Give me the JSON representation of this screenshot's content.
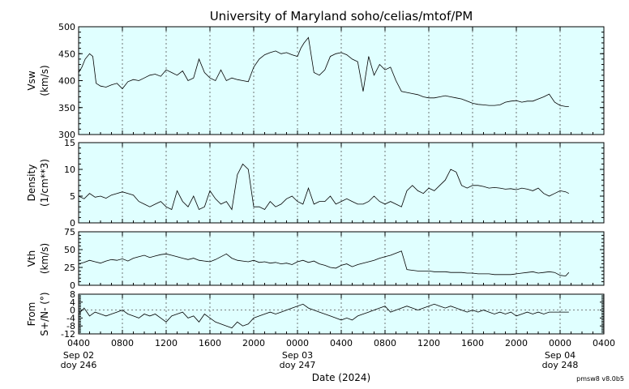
{
  "title": "University of Maryland  soho/celias/mtof/PM",
  "xlabel": "Date (2024)",
  "footer": "pmsw8 v8.0b5",
  "x_tick_labels": [
    "0400",
    "0800",
    "1200",
    "1600",
    "2000",
    "0000",
    "0400",
    "0800",
    "1200",
    "1600",
    "2000",
    "0000",
    "0400"
  ],
  "date_labels": [
    {
      "date": "Sep 02",
      "doy": "doy 246"
    },
    {
      "date": "Sep 03",
      "doy": "doy 247"
    },
    {
      "date": "Sep 04",
      "doy": "doy 248"
    }
  ],
  "chart_data": [
    {
      "type": "line",
      "ylabel": [
        "Vsw",
        "(km/s)"
      ],
      "ylim": [
        300,
        500
      ],
      "yticks": [
        300,
        350,
        400,
        450,
        500
      ],
      "xlim_hours": [
        4,
        52
      ],
      "series": [
        {
          "x": [
            4,
            4.3,
            4.6,
            5,
            5.3,
            5.6,
            6,
            6.5,
            7,
            7.5,
            8,
            8.5,
            9,
            9.5,
            10,
            10.5,
            11,
            11.5,
            12,
            12.5,
            13,
            13.5,
            14,
            14.5,
            15,
            15.5,
            16,
            16.5,
            17,
            17.5,
            18,
            18.5,
            19,
            19.5,
            20,
            20.5,
            21,
            21.5,
            22,
            22.5,
            23,
            23.5,
            24,
            24.3,
            24.6,
            25,
            25.5,
            26,
            26.5,
            27,
            27.5,
            28,
            28.5,
            29,
            29.5,
            30,
            30.5,
            31,
            31.5,
            32,
            32.5,
            33,
            33.5,
            34,
            34.5,
            35,
            35.5,
            36,
            36.5,
            37,
            37.5,
            38,
            38.5,
            39,
            39.5,
            40,
            40.5,
            41,
            41.5,
            42,
            42.5,
            43,
            43.5,
            44,
            44.5,
            45,
            45.5,
            46,
            46.5,
            47,
            47.5,
            48,
            48.5,
            48.8
          ],
          "values": [
            415,
            425,
            440,
            450,
            445,
            395,
            390,
            388,
            392,
            395,
            385,
            398,
            402,
            400,
            405,
            410,
            412,
            408,
            420,
            415,
            410,
            418,
            400,
            405,
            440,
            415,
            405,
            400,
            420,
            400,
            405,
            402,
            400,
            398,
            425,
            440,
            448,
            452,
            455,
            450,
            452,
            448,
            445,
            460,
            470,
            480,
            415,
            410,
            420,
            445,
            450,
            452,
            448,
            440,
            435,
            380,
            445,
            410,
            430,
            420,
            425,
            400,
            380,
            378,
            376,
            374,
            370,
            368,
            368,
            370,
            372,
            370,
            368,
            366,
            362,
            358,
            356,
            355,
            354,
            354,
            355,
            360,
            362,
            363,
            360,
            362,
            362,
            366,
            370,
            375,
            360,
            354,
            352,
            352
          ]
        }
      ]
    },
    {
      "type": "line",
      "ylabel": [
        "Density",
        "(1/cm**3)"
      ],
      "ylim": [
        0,
        15
      ],
      "yticks": [
        0,
        5,
        10,
        15
      ],
      "xlim_hours": [
        4,
        52
      ],
      "series": [
        {
          "x": [
            4,
            4.5,
            5,
            5.5,
            6,
            6.5,
            7,
            7.5,
            8,
            8.5,
            9,
            9.5,
            10,
            10.5,
            11,
            11.5,
            12,
            12.5,
            13,
            13.5,
            14,
            14.5,
            15,
            15.5,
            16,
            16.5,
            17,
            17.5,
            18,
            18.5,
            19,
            19.5,
            20,
            20.5,
            21,
            21.5,
            22,
            22.5,
            23,
            23.5,
            24,
            24.5,
            25,
            25.5,
            26,
            26.5,
            27,
            27.5,
            28,
            28.5,
            29,
            29.5,
            30,
            30.5,
            31,
            31.5,
            32,
            32.5,
            33,
            33.5,
            34,
            34.5,
            35,
            35.5,
            36,
            36.5,
            37,
            37.5,
            38,
            38.5,
            39,
            39.5,
            40,
            40.5,
            41,
            41.5,
            42,
            42.5,
            43,
            43.5,
            44,
            44.5,
            45,
            45.5,
            46,
            46.5,
            47,
            47.5,
            48,
            48.5,
            48.8
          ],
          "values": [
            5,
            4.5,
            5.5,
            4.8,
            5,
            4.6,
            5.2,
            5.5,
            5.8,
            5.5,
            5.2,
            4,
            3.5,
            3,
            3.5,
            4,
            3,
            2.5,
            6,
            4,
            3,
            5,
            2.5,
            3,
            6,
            4.5,
            3.5,
            4,
            2.5,
            9,
            11,
            10,
            3,
            3,
            2.5,
            4,
            3,
            3.5,
            4.5,
            5,
            4,
            3.5,
            6.5,
            3.5,
            4,
            4,
            5,
            3.5,
            4,
            4.5,
            4,
            3.5,
            3.5,
            4,
            5,
            4,
            3.5,
            4,
            3.5,
            3,
            6,
            7,
            6,
            5.5,
            6.5,
            6,
            7,
            8,
            10,
            9.5,
            7,
            6.5,
            7,
            7,
            6.8,
            6.5,
            6.6,
            6.5,
            6.3,
            6.4,
            6.2,
            6.5,
            6.3,
            6,
            6.5,
            5.5,
            5,
            5.5,
            6,
            5.8,
            5.5
          ]
        }
      ]
    },
    {
      "type": "line",
      "ylabel": [
        "Vth",
        "(km/s)"
      ],
      "ylim": [
        0,
        75
      ],
      "yticks": [
        0,
        25,
        50,
        75
      ],
      "xlim_hours": [
        4,
        52
      ],
      "series": [
        {
          "x": [
            4,
            4.5,
            5,
            5.5,
            6,
            6.5,
            7,
            7.5,
            8,
            8.5,
            9,
            9.5,
            10,
            10.5,
            11,
            11.5,
            12,
            12.5,
            13,
            13.5,
            14,
            14.5,
            15,
            15.5,
            16,
            16.5,
            17,
            17.5,
            18,
            18.5,
            19,
            19.5,
            20,
            20.5,
            21,
            21.5,
            22,
            22.5,
            23,
            23.5,
            24,
            24.5,
            25,
            25.5,
            26,
            26.5,
            27,
            27.5,
            28,
            28.5,
            29,
            29.5,
            30,
            30.5,
            31,
            31.5,
            32,
            32.5,
            33,
            33.5,
            34,
            34.5,
            35,
            35.5,
            36,
            36.5,
            37,
            37.5,
            38,
            38.5,
            39,
            39.5,
            40,
            40.5,
            41,
            41.5,
            42,
            42.5,
            43,
            43.5,
            44,
            44.5,
            45,
            45.5,
            46,
            46.5,
            47,
            47.5,
            48,
            48.5,
            48.8
          ],
          "values": [
            30,
            32,
            35,
            33,
            31,
            34,
            36,
            35,
            37,
            34,
            38,
            40,
            42,
            39,
            41,
            43,
            44,
            42,
            40,
            38,
            36,
            38,
            35,
            34,
            33,
            36,
            40,
            44,
            38,
            35,
            34,
            33,
            35,
            32,
            33,
            31,
            32,
            30,
            31,
            29,
            33,
            35,
            32,
            34,
            30,
            28,
            25,
            24,
            28,
            30,
            26,
            29,
            31,
            33,
            35,
            38,
            40,
            42,
            45,
            48,
            22,
            21,
            20,
            20,
            20,
            19,
            19,
            19,
            18,
            18,
            18,
            17,
            17,
            16,
            16,
            16,
            15,
            15,
            15,
            15,
            16,
            17,
            18,
            19,
            17,
            18,
            19,
            18,
            14,
            13,
            18
          ]
        }
      ]
    },
    {
      "type": "line",
      "ylabel": [
        "From",
        "S+/N- (°)"
      ],
      "ylim": [
        -12,
        8
      ],
      "yticks": [
        -12,
        -8,
        -4,
        0,
        4,
        8
      ],
      "xlim_hours": [
        4,
        52
      ],
      "series": [
        {
          "x": [
            4,
            4.5,
            5,
            5.5,
            6,
            6.5,
            7,
            7.5,
            8,
            8.5,
            9,
            9.5,
            10,
            10.5,
            11,
            11.5,
            12,
            12.5,
            13,
            13.5,
            14,
            14.5,
            15,
            15.5,
            16,
            16.5,
            17,
            17.5,
            18,
            18.5,
            19,
            19.5,
            20,
            20.5,
            21,
            21.5,
            22,
            22.5,
            23,
            23.5,
            24,
            24.5,
            25,
            25.5,
            26,
            26.5,
            27,
            27.5,
            28,
            28.5,
            29,
            29.5,
            30,
            30.5,
            31,
            31.5,
            32,
            32.5,
            33,
            33.5,
            34,
            34.5,
            35,
            35.5,
            36,
            36.5,
            37,
            37.5,
            38,
            38.5,
            39,
            39.5,
            40,
            40.5,
            41,
            41.5,
            42,
            42.5,
            43,
            43.5,
            44,
            44.5,
            45,
            45.5,
            46,
            46.5,
            47,
            47.5,
            48,
            48.5,
            48.8
          ],
          "values": [
            -2,
            1,
            -3,
            -1,
            -2,
            -3,
            -2,
            -1,
            0,
            -2,
            -3,
            -4,
            -2,
            -3,
            -2,
            -4,
            -6,
            -3,
            -2,
            -1,
            -4,
            -3,
            -6,
            -2,
            -4,
            -6,
            -7,
            -8,
            -9,
            -6,
            -8,
            -7,
            -4,
            -3,
            -2,
            -1,
            -2,
            -1,
            0,
            1,
            2,
            3,
            1,
            0,
            -1,
            -2,
            -3,
            -4,
            -5,
            -4,
            -5,
            -3,
            -2,
            -1,
            0,
            1,
            2,
            -1,
            0,
            1,
            2,
            1,
            0,
            1,
            2,
            3,
            2,
            1,
            2,
            1,
            0,
            -1,
            0,
            -1,
            0,
            -1,
            -2,
            -1,
            -2,
            -1,
            -3,
            -2,
            -1,
            -2,
            -1,
            -2,
            -1,
            -1,
            -1,
            -1,
            -1
          ]
        }
      ]
    }
  ]
}
